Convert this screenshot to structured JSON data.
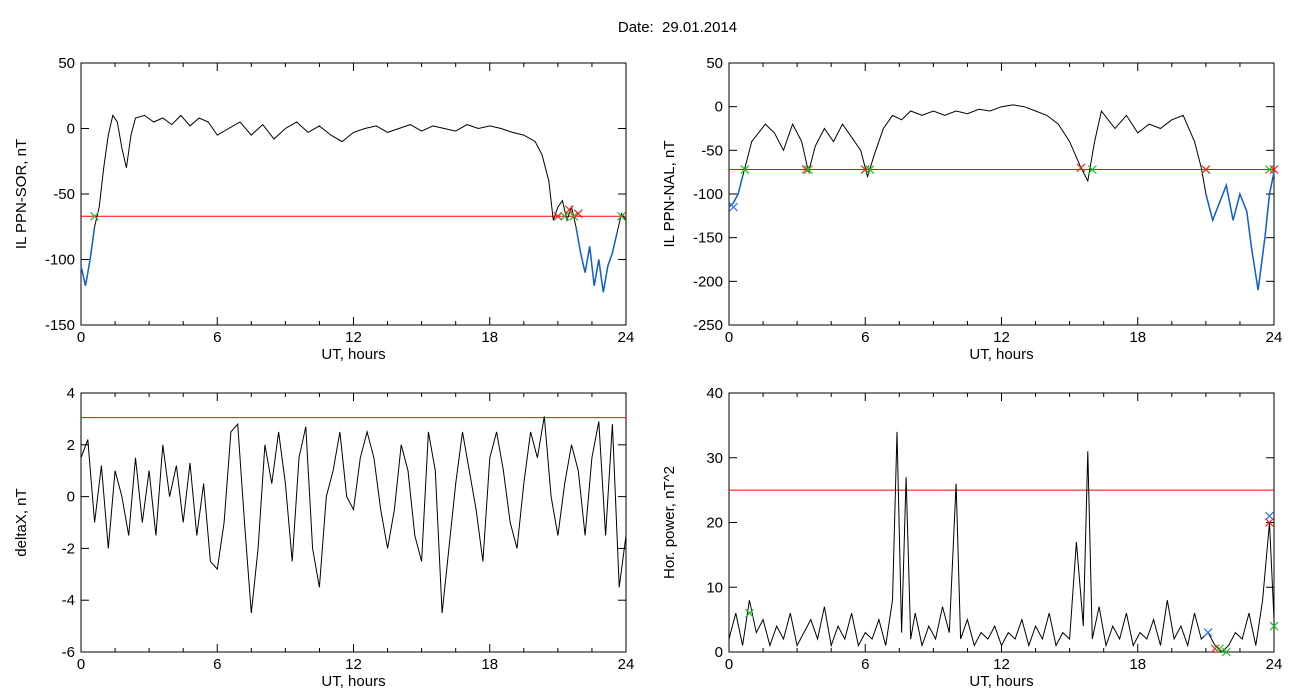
{
  "title": "Date:  29.01.2014",
  "colors": {
    "trace": "#000000",
    "threshold": "#ff0000",
    "sub_trace": "#1060d0",
    "marker_green": "#22bb22",
    "marker_red": "#ff2020",
    "marker_blue": "#3070ff"
  },
  "chart_data": [
    {
      "type": "line",
      "xlabel": "UT, hours",
      "ylabel": "IL PPN-SOR, nT",
      "xlim": [
        0,
        24
      ],
      "ylim": [
        -150,
        50
      ],
      "xticks": [
        0,
        6,
        12,
        18,
        24
      ],
      "yticks": [
        -150,
        -100,
        -50,
        0,
        50
      ],
      "threshold": -67,
      "series": [
        {
          "x": [
            0,
            0.2,
            0.4,
            0.6,
            0.8,
            1.0,
            1.2,
            1.4,
            1.6,
            1.8,
            2.0,
            2.2,
            2.4,
            2.8,
            3.2,
            3.6,
            4.0,
            4.4,
            4.8,
            5.2,
            5.6,
            6.0,
            6.5,
            7.0,
            7.5,
            8.0,
            8.5,
            9.0,
            9.5,
            10.0,
            10.5,
            11.0,
            11.5,
            12.0,
            12.5,
            13.0,
            13.5,
            14.0,
            14.5,
            15.0,
            15.5,
            16.0,
            16.5,
            17.0,
            17.5,
            18.0,
            18.5,
            19.0,
            19.5,
            20.0,
            20.3,
            20.6,
            20.8,
            21.0,
            21.2,
            21.4,
            21.6,
            21.8,
            22.0,
            22.2,
            22.4,
            22.6,
            22.8,
            23.0,
            23.2,
            23.4,
            23.6,
            23.8,
            24.0
          ],
          "y": [
            -105,
            -120,
            -100,
            -75,
            -60,
            -30,
            -5,
            10,
            5,
            -15,
            -30,
            -5,
            8,
            10,
            5,
            8,
            3,
            10,
            2,
            8,
            5,
            -5,
            0,
            5,
            -5,
            3,
            -8,
            0,
            5,
            -3,
            2,
            -5,
            -10,
            -3,
            0,
            2,
            -3,
            0,
            3,
            -2,
            2,
            0,
            -2,
            3,
            0,
            2,
            0,
            -3,
            -5,
            -10,
            -20,
            -40,
            -70,
            -60,
            -55,
            -70,
            -60,
            -75,
            -95,
            -110,
            -90,
            -120,
            -100,
            -125,
            -105,
            -95,
            -80,
            -65,
            -70
          ]
        }
      ],
      "markers": [
        {
          "x": 0.6,
          "y": -67,
          "color": "green"
        },
        {
          "x": 21.0,
          "y": -67,
          "color": "red"
        },
        {
          "x": 21.3,
          "y": -67,
          "color": "green"
        },
        {
          "x": 21.5,
          "y": -62,
          "color": "red"
        },
        {
          "x": 21.7,
          "y": -67,
          "color": "green"
        },
        {
          "x": 21.9,
          "y": -65,
          "color": "red"
        },
        {
          "x": 23.8,
          "y": -67,
          "color": "green"
        }
      ]
    },
    {
      "type": "line",
      "xlabel": "UT, hours",
      "ylabel": "IL PPN-NAL, nT",
      "xlim": [
        0,
        24
      ],
      "ylim": [
        -250,
        50
      ],
      "xticks": [
        0,
        6,
        12,
        18,
        24
      ],
      "yticks": [
        -250,
        -200,
        -150,
        -100,
        -50,
        0,
        50
      ],
      "threshold": -72,
      "series": [
        {
          "x": [
            0,
            0.2,
            0.4,
            0.6,
            0.8,
            1.0,
            1.3,
            1.6,
            2.0,
            2.4,
            2.8,
            3.2,
            3.5,
            3.8,
            4.2,
            4.6,
            5.0,
            5.4,
            5.8,
            6.1,
            6.4,
            6.8,
            7.2,
            7.6,
            8.0,
            8.5,
            9.0,
            9.5,
            10.0,
            10.5,
            11.0,
            11.5,
            12.0,
            12.5,
            13.0,
            13.5,
            14.0,
            14.5,
            15.0,
            15.5,
            15.8,
            16.1,
            16.4,
            16.7,
            17.0,
            17.5,
            18.0,
            18.5,
            19.0,
            19.5,
            20.0,
            20.5,
            20.8,
            21.0,
            21.3,
            21.6,
            21.9,
            22.2,
            22.5,
            22.8,
            23.0,
            23.3,
            23.6,
            23.8,
            24.0
          ],
          "y": [
            -115,
            -110,
            -100,
            -80,
            -60,
            -40,
            -30,
            -20,
            -30,
            -50,
            -20,
            -40,
            -75,
            -45,
            -25,
            -40,
            -20,
            -35,
            -50,
            -80,
            -55,
            -25,
            -10,
            -15,
            -5,
            -10,
            -5,
            -10,
            -5,
            -8,
            -3,
            -5,
            0,
            2,
            0,
            -5,
            -10,
            -20,
            -40,
            -70,
            -85,
            -40,
            -5,
            -15,
            -25,
            -10,
            -30,
            -20,
            -25,
            -15,
            -10,
            -40,
            -70,
            -100,
            -130,
            -110,
            -90,
            -130,
            -100,
            -120,
            -160,
            -210,
            -150,
            -100,
            -75
          ]
        }
      ],
      "markers": [
        {
          "x": 0.2,
          "y": -115,
          "color": "blue"
        },
        {
          "x": 0.7,
          "y": -72,
          "color": "green"
        },
        {
          "x": 3.4,
          "y": -72,
          "color": "red"
        },
        {
          "x": 3.5,
          "y": -72,
          "color": "green"
        },
        {
          "x": 6.0,
          "y": -72,
          "color": "red"
        },
        {
          "x": 6.2,
          "y": -72,
          "color": "green"
        },
        {
          "x": 15.5,
          "y": -70,
          "color": "red"
        },
        {
          "x": 16.0,
          "y": -72,
          "color": "green"
        },
        {
          "x": 21.0,
          "y": -72,
          "color": "red"
        },
        {
          "x": 23.8,
          "y": -72,
          "color": "green"
        },
        {
          "x": 24.0,
          "y": -72,
          "color": "red"
        }
      ]
    },
    {
      "type": "line",
      "xlabel": "UT, hours",
      "ylabel": "deltaX, nT",
      "xlim": [
        0,
        24
      ],
      "ylim": [
        -6,
        4
      ],
      "xticks": [
        0,
        6,
        12,
        18,
        24
      ],
      "yticks": [
        -6,
        -4,
        -2,
        0,
        2,
        4
      ],
      "threshold": 3.05,
      "series": [
        {
          "x": [
            0,
            0.3,
            0.6,
            0.9,
            1.2,
            1.5,
            1.8,
            2.1,
            2.4,
            2.7,
            3.0,
            3.3,
            3.6,
            3.9,
            4.2,
            4.5,
            4.8,
            5.1,
            5.4,
            5.7,
            6.0,
            6.3,
            6.6,
            6.9,
            7.2,
            7.5,
            7.8,
            8.1,
            8.4,
            8.7,
            9.0,
            9.3,
            9.6,
            9.9,
            10.2,
            10.5,
            10.8,
            11.1,
            11.4,
            11.7,
            12.0,
            12.3,
            12.6,
            12.9,
            13.2,
            13.5,
            13.8,
            14.1,
            14.4,
            14.7,
            15.0,
            15.3,
            15.6,
            15.9,
            16.2,
            16.5,
            16.8,
            17.1,
            17.4,
            17.7,
            18.0,
            18.3,
            18.6,
            18.9,
            19.2,
            19.5,
            19.8,
            20.1,
            20.4,
            20.7,
            21.0,
            21.3,
            21.6,
            21.9,
            22.2,
            22.5,
            22.8,
            23.1,
            23.4,
            23.7,
            24.0
          ],
          "y": [
            1.5,
            2.2,
            -1.0,
            1.2,
            -2.0,
            1.0,
            0.0,
            -1.5,
            1.5,
            -1.0,
            1.0,
            -1.5,
            2.0,
            0.0,
            1.2,
            -1.0,
            1.3,
            -1.5,
            0.5,
            -2.5,
            -2.8,
            -1.0,
            2.5,
            2.8,
            -1.0,
            -4.5,
            -2.0,
            2.0,
            0.5,
            2.5,
            0.5,
            -2.5,
            1.5,
            2.7,
            -2.0,
            -3.5,
            0.0,
            1.0,
            2.5,
            0.0,
            -0.5,
            1.5,
            2.5,
            1.5,
            -0.5,
            -2.0,
            -0.5,
            2.0,
            1.0,
            -1.5,
            -2.5,
            2.5,
            1.0,
            -4.5,
            -2.0,
            0.5,
            2.5,
            1.0,
            -0.5,
            -2.5,
            1.5,
            2.5,
            1.0,
            -1.0,
            -2.0,
            0.5,
            2.5,
            1.5,
            3.1,
            0.0,
            -1.5,
            0.5,
            2.0,
            1.0,
            -1.5,
            1.5,
            2.9,
            -1.5,
            2.8,
            -3.5,
            -1.5
          ]
        }
      ],
      "markers": []
    },
    {
      "type": "line",
      "xlabel": "UT, hours",
      "ylabel": "Hor. power, nT^2",
      "xlim": [
        0,
        24
      ],
      "ylim": [
        0,
        40
      ],
      "xticks": [
        0,
        6,
        12,
        18,
        24
      ],
      "yticks": [
        0,
        10,
        20,
        30,
        40
      ],
      "threshold": 25,
      "series": [
        {
          "x": [
            0,
            0.3,
            0.6,
            0.9,
            1.2,
            1.5,
            1.8,
            2.1,
            2.4,
            2.7,
            3.0,
            3.3,
            3.6,
            3.9,
            4.2,
            4.5,
            4.8,
            5.1,
            5.4,
            5.7,
            6.0,
            6.3,
            6.6,
            6.9,
            7.2,
            7.4,
            7.6,
            7.8,
            8.0,
            8.2,
            8.5,
            8.8,
            9.1,
            9.4,
            9.7,
            10.0,
            10.2,
            10.5,
            10.8,
            11.1,
            11.4,
            11.7,
            12.0,
            12.3,
            12.6,
            12.9,
            13.2,
            13.5,
            13.8,
            14.1,
            14.4,
            14.7,
            15.0,
            15.3,
            15.6,
            15.8,
            16.0,
            16.3,
            16.6,
            16.9,
            17.2,
            17.5,
            17.8,
            18.1,
            18.4,
            18.7,
            19.0,
            19.3,
            19.6,
            19.9,
            20.2,
            20.5,
            20.8,
            21.1,
            21.4,
            21.7,
            22.0,
            22.3,
            22.6,
            22.9,
            23.2,
            23.5,
            23.8,
            24.0
          ],
          "y": [
            2,
            6,
            1,
            8,
            3,
            5,
            1,
            4,
            2,
            6,
            1,
            3,
            5,
            2,
            7,
            1,
            4,
            2,
            6,
            1,
            3,
            2,
            5,
            1,
            8,
            34,
            3,
            27,
            2,
            6,
            1,
            4,
            2,
            7,
            3,
            26,
            2,
            5,
            1,
            3,
            2,
            4,
            1,
            3,
            2,
            5,
            1,
            4,
            2,
            6,
            1,
            3,
            2,
            17,
            4,
            31,
            2,
            7,
            1,
            4,
            2,
            6,
            1,
            3,
            2,
            5,
            1,
            8,
            2,
            4,
            1,
            6,
            2,
            3,
            1,
            0,
            1,
            3,
            2,
            6,
            1,
            8,
            20,
            5
          ]
        }
      ],
      "markers": [
        {
          "x": 0.9,
          "y": 6,
          "color": "green"
        },
        {
          "x": 21.1,
          "y": 3,
          "color": "blue"
        },
        {
          "x": 21.4,
          "y": 0.5,
          "color": "red"
        },
        {
          "x": 21.6,
          "y": 0.5,
          "color": "green"
        },
        {
          "x": 21.9,
          "y": 0,
          "color": "green"
        },
        {
          "x": 23.8,
          "y": 21,
          "color": "blue"
        },
        {
          "x": 23.8,
          "y": 20,
          "color": "red"
        },
        {
          "x": 24.0,
          "y": 4,
          "color": "green"
        }
      ]
    }
  ]
}
